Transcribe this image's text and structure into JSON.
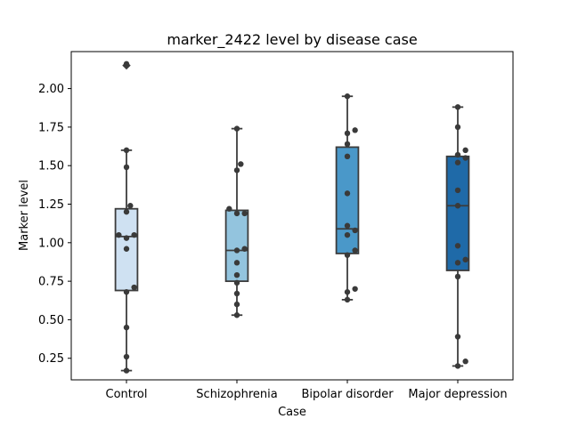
{
  "chart_data": {
    "type": "box",
    "title": "marker_2422 level by disease case",
    "xlabel": "Case",
    "ylabel": "Marker level",
    "ylim": [
      0.11,
      2.24
    ],
    "yticks": [
      "0.25",
      "0.50",
      "0.75",
      "1.00",
      "1.25",
      "1.50",
      "1.75",
      "2.00"
    ],
    "grid": false,
    "legend": "none",
    "categories": [
      "Control",
      "Schizophrenia",
      "Bipolar disorder",
      "Major depression"
    ],
    "colors": [
      "#cfe1f2",
      "#93c4de",
      "#4a98c9",
      "#1f6aa8"
    ],
    "boxes": [
      {
        "q1": 0.69,
        "median": 1.04,
        "q3": 1.22,
        "whisker_low": 0.17,
        "whisker_high": 1.6,
        "outliers": [
          2.15
        ]
      },
      {
        "q1": 0.75,
        "median": 0.95,
        "q3": 1.21,
        "whisker_low": 0.53,
        "whisker_high": 1.74,
        "outliers": []
      },
      {
        "q1": 0.93,
        "median": 1.09,
        "q3": 1.62,
        "whisker_low": 0.63,
        "whisker_high": 1.95,
        "outliers": []
      },
      {
        "q1": 0.82,
        "median": 1.24,
        "q3": 1.56,
        "whisker_low": 0.2,
        "whisker_high": 1.88,
        "outliers": []
      }
    ],
    "points": [
      {
        "category": "Control",
        "values": [
          2.16,
          1.6,
          1.49,
          1.24,
          1.2,
          1.05,
          1.05,
          1.03,
          0.96,
          0.71,
          0.68,
          0.45,
          0.26,
          0.17
        ]
      },
      {
        "category": "Schizophrenia",
        "values": [
          1.74,
          1.51,
          1.47,
          1.22,
          1.19,
          1.19,
          0.96,
          0.95,
          0.87,
          0.79,
          0.74,
          0.67,
          0.6,
          0.53
        ]
      },
      {
        "category": "Bipolar disorder",
        "values": [
          1.95,
          1.73,
          1.71,
          1.64,
          1.56,
          1.32,
          1.11,
          1.08,
          1.05,
          0.95,
          0.92,
          0.7,
          0.68,
          0.63
        ]
      },
      {
        "category": "Major depression",
        "values": [
          1.88,
          1.75,
          1.6,
          1.57,
          1.55,
          1.52,
          1.34,
          1.24,
          0.98,
          0.89,
          0.87,
          0.78,
          0.39,
          0.23,
          0.2
        ]
      }
    ]
  }
}
